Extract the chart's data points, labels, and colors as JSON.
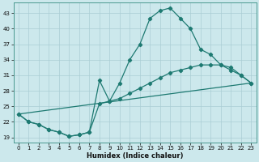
{
  "xlabel": "Humidex (Indice chaleur)",
  "bg_color": "#cce8ec",
  "line_color": "#1e7a72",
  "grid_color": "#aacdd4",
  "xlim": [
    -0.5,
    23.5
  ],
  "ylim": [
    18,
    45
  ],
  "yticks": [
    19,
    22,
    25,
    28,
    31,
    34,
    37,
    40,
    43
  ],
  "xticks": [
    0,
    1,
    2,
    3,
    4,
    5,
    6,
    7,
    8,
    9,
    10,
    11,
    12,
    13,
    14,
    15,
    16,
    17,
    18,
    19,
    20,
    21,
    22,
    23
  ],
  "series": [
    {
      "x": [
        0,
        1,
        2,
        3,
        4,
        5,
        6,
        7,
        8,
        9,
        10,
        11,
        12,
        13,
        14,
        15,
        16,
        17,
        18,
        19,
        20,
        21,
        22,
        23
      ],
      "y": [
        23.5,
        22,
        21.5,
        20.5,
        20,
        19.2,
        19.5,
        20,
        30,
        26,
        29.5,
        34,
        37,
        42,
        43.5,
        44,
        42,
        40,
        36,
        35,
        33,
        32,
        31,
        29.5
      ]
    },
    {
      "x": [
        0,
        1,
        2,
        3,
        4,
        5,
        6,
        7,
        8,
        9,
        10,
        11,
        12,
        13,
        14,
        15,
        16,
        17,
        18,
        19,
        20,
        21,
        22,
        23
      ],
      "y": [
        23.5,
        22,
        21.5,
        20.5,
        20,
        19.2,
        19.5,
        20,
        25.5,
        26,
        26.5,
        27.5,
        28.5,
        29.5,
        30.5,
        31.5,
        32,
        32.5,
        33,
        33,
        33,
        32.5,
        31,
        29.5
      ]
    },
    {
      "x": [
        0,
        23
      ],
      "y": [
        23.5,
        29.5
      ]
    }
  ]
}
